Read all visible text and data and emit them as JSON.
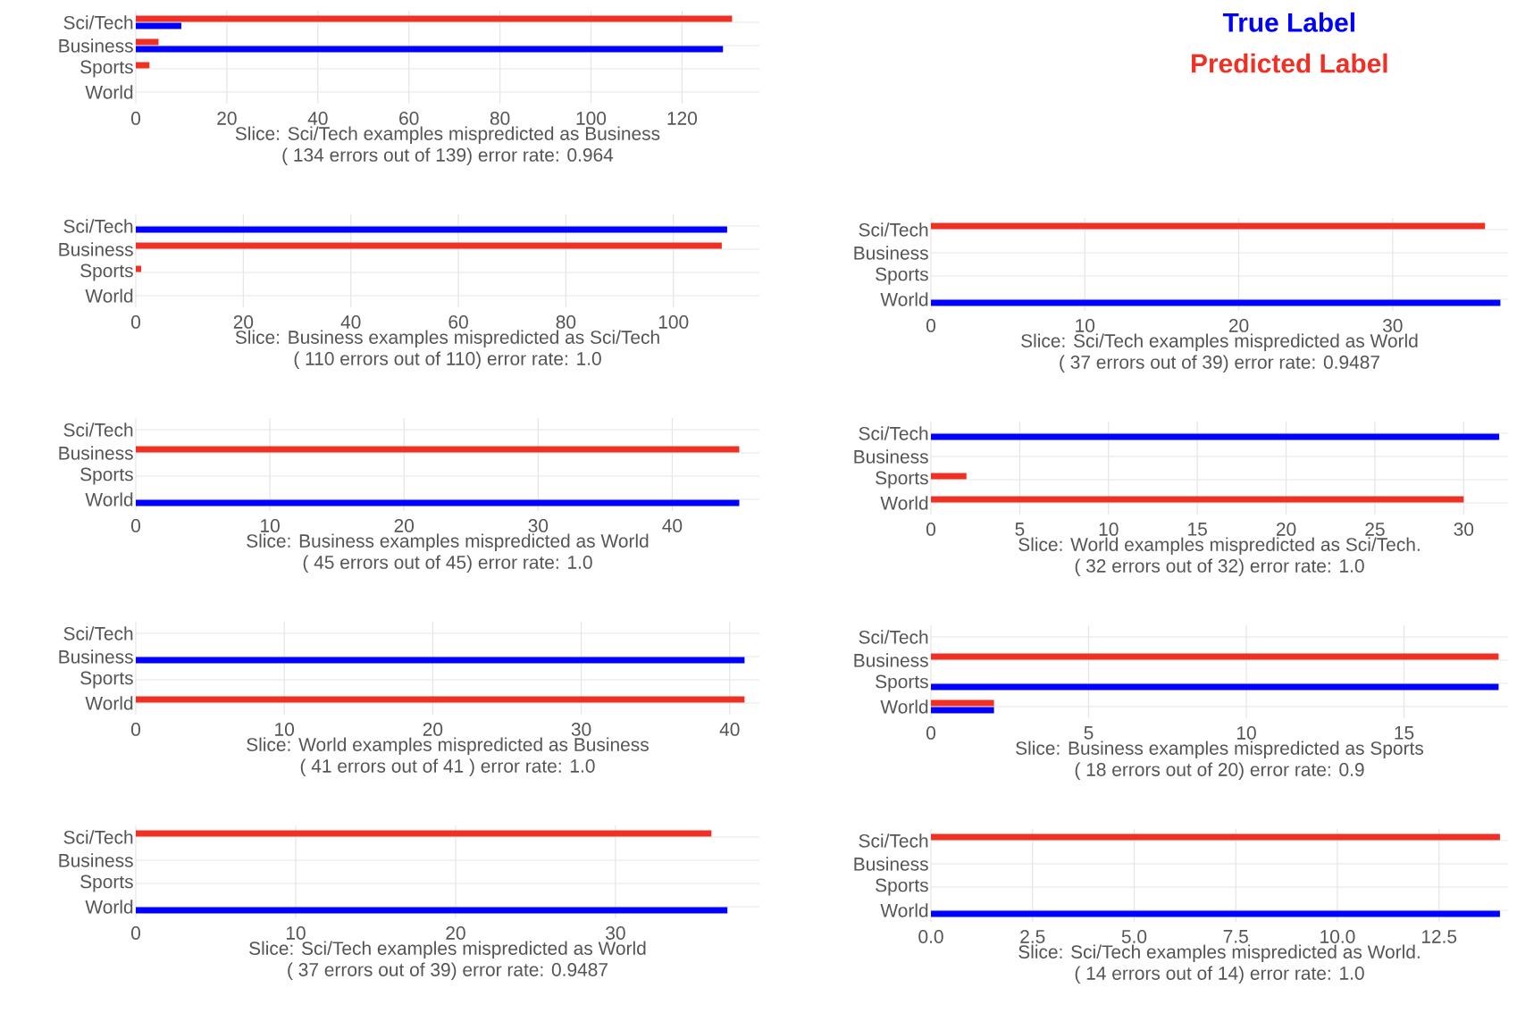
{
  "chart_data": [
    {
      "type": "bar",
      "orientation": "horizontal",
      "categories": [
        "Sci/Tech",
        "Business",
        "Sports",
        "World"
      ],
      "series": [
        {
          "name": "True Label",
          "color": "#0000ff",
          "values": [
            10,
            129,
            null,
            null
          ]
        },
        {
          "name": "Predicted Label",
          "color": "#ee3124",
          "values": [
            131,
            5,
            3,
            null
          ]
        }
      ],
      "xlabel": "Slice: Sci/Tech examples mispredicted as Business",
      "annotations": [
        "( 134 errors out of 139) error rate: 0.964"
      ],
      "xlim": [
        0,
        137
      ],
      "xticks": [
        0,
        20,
        40,
        60,
        80,
        100,
        120
      ],
      "grid": true,
      "legend": "right"
    },
    {
      "type": "bar",
      "orientation": "horizontal",
      "categories": [
        "Sci/Tech",
        "Business",
        "Sports",
        "World"
      ],
      "series": [
        {
          "color": "#0000ff",
          "values": [
            110,
            null,
            null,
            null
          ]
        },
        {
          "color": "#ee3124",
          "values": [
            null,
            109,
            1,
            null
          ]
        }
      ],
      "xlabel": "Slice: Business examples mispredicted as Sci/Tech",
      "annotations": [
        "( 110 errors out of 110) error rate: 1.0"
      ],
      "xlim": [
        0,
        116
      ],
      "xticks": [
        0,
        20,
        40,
        60,
        80,
        100
      ],
      "grid": true
    },
    {
      "type": "bar",
      "orientation": "horizontal",
      "categories": [
        "Sci/Tech",
        "Business",
        "Sports",
        "World"
      ],
      "series": [
        {
          "color": "#0000ff",
          "values": [
            null,
            null,
            null,
            37
          ]
        },
        {
          "color": "#ee3124",
          "values": [
            36,
            null,
            null,
            null
          ]
        }
      ],
      "xlabel": "Slice: Sci/Tech examples mispredicted as World",
      "annotations": [
        "( 37 errors out of 39) error rate: 0.9487"
      ],
      "xlim": [
        0,
        37.5
      ],
      "xticks": [
        0,
        10,
        20,
        30
      ],
      "grid": true
    },
    {
      "type": "bar",
      "orientation": "horizontal",
      "categories": [
        "Sci/Tech",
        "Business",
        "Sports",
        "World"
      ],
      "series": [
        {
          "color": "#0000ff",
          "values": [
            null,
            null,
            null,
            45
          ]
        },
        {
          "color": "#ee3124",
          "values": [
            null,
            45,
            null,
            null
          ]
        }
      ],
      "xlabel": "Slice: Business examples mispredicted as World",
      "annotations": [
        "( 45 errors out of 45) error rate: 1.0"
      ],
      "xlim": [
        0,
        46.5
      ],
      "xticks": [
        0,
        10,
        20,
        30,
        40
      ],
      "grid": true
    },
    {
      "type": "bar",
      "orientation": "horizontal",
      "categories": [
        "Sci/Tech",
        "Business",
        "Sports",
        "World"
      ],
      "series": [
        {
          "color": "#0000ff",
          "values": [
            32,
            null,
            null,
            null
          ]
        },
        {
          "color": "#ee3124",
          "values": [
            null,
            null,
            2,
            30
          ]
        }
      ],
      "xlabel": "Slice: World examples mispredicted as Sci/Tech.",
      "annotations": [
        "( 32 errors out of 32) error rate: 1.0"
      ],
      "xlim": [
        0,
        32.5
      ],
      "xticks": [
        0,
        5,
        10,
        15,
        20,
        25,
        30
      ],
      "grid": true
    },
    {
      "type": "bar",
      "orientation": "horizontal",
      "categories": [
        "Sci/Tech",
        "Business",
        "Sports",
        "World"
      ],
      "series": [
        {
          "color": "#0000ff",
          "values": [
            null,
            41,
            null,
            null
          ]
        },
        {
          "color": "#ee3124",
          "values": [
            null,
            null,
            null,
            41
          ]
        }
      ],
      "xlabel": "Slice: World examples mispredicted as Business",
      "annotations": [
        "( 41 errors out of 41 ) error rate: 1.0"
      ],
      "xlim": [
        0,
        42
      ],
      "xticks": [
        0,
        10,
        20,
        30,
        40
      ],
      "grid": true
    },
    {
      "type": "bar",
      "orientation": "horizontal",
      "categories": [
        "Sci/Tech",
        "Business",
        "Sports",
        "World"
      ],
      "series": [
        {
          "color": "#0000ff",
          "values": [
            null,
            null,
            18,
            2
          ]
        },
        {
          "color": "#ee3124",
          "values": [
            null,
            18,
            null,
            2
          ]
        }
      ],
      "xlabel": "Slice: Business examples mispredicted as Sports",
      "annotations": [
        "( 18 errors out of 20) error rate: 0.9"
      ],
      "xlim": [
        0,
        18.3
      ],
      "xticks": [
        0,
        5,
        10,
        15
      ],
      "grid": true
    },
    {
      "type": "bar",
      "orientation": "horizontal",
      "categories": [
        "Sci/Tech",
        "Business",
        "Sports",
        "World"
      ],
      "series": [
        {
          "color": "#0000ff",
          "values": [
            null,
            null,
            null,
            37
          ]
        },
        {
          "color": "#ee3124",
          "values": [
            36,
            null,
            null,
            null
          ]
        }
      ],
      "xlabel": "Slice: Sci/Tech examples mispredicted as World",
      "annotations": [
        "( 37 errors out of 39) error rate: 0.9487"
      ],
      "xlim": [
        0,
        39
      ],
      "xticks": [
        0,
        10,
        20,
        30
      ],
      "grid": true
    },
    {
      "type": "bar",
      "orientation": "horizontal",
      "categories": [
        "Sci/Tech",
        "Business",
        "Sports",
        "World"
      ],
      "series": [
        {
          "color": "#0000ff",
          "values": [
            null,
            null,
            null,
            14
          ]
        },
        {
          "color": "#ee3124",
          "values": [
            14,
            null,
            null,
            null
          ]
        }
      ],
      "xlabel": "Slice: Sci/Tech examples mispredicted as World.",
      "annotations": [
        "( 14 errors out of 14) error rate: 1.0"
      ],
      "xlim": [
        0,
        14.2
      ],
      "xticks": [
        {
          "value": 0,
          "label": "0.0"
        },
        {
          "value": 2.5,
          "label": "2.5"
        },
        {
          "value": 5,
          "label": "5.0"
        },
        {
          "value": 7.5,
          "label": "7.5"
        },
        {
          "value": 10,
          "label": "10.0"
        },
        {
          "value": 12.5,
          "label": "12.5"
        }
      ],
      "grid": true
    }
  ]
}
